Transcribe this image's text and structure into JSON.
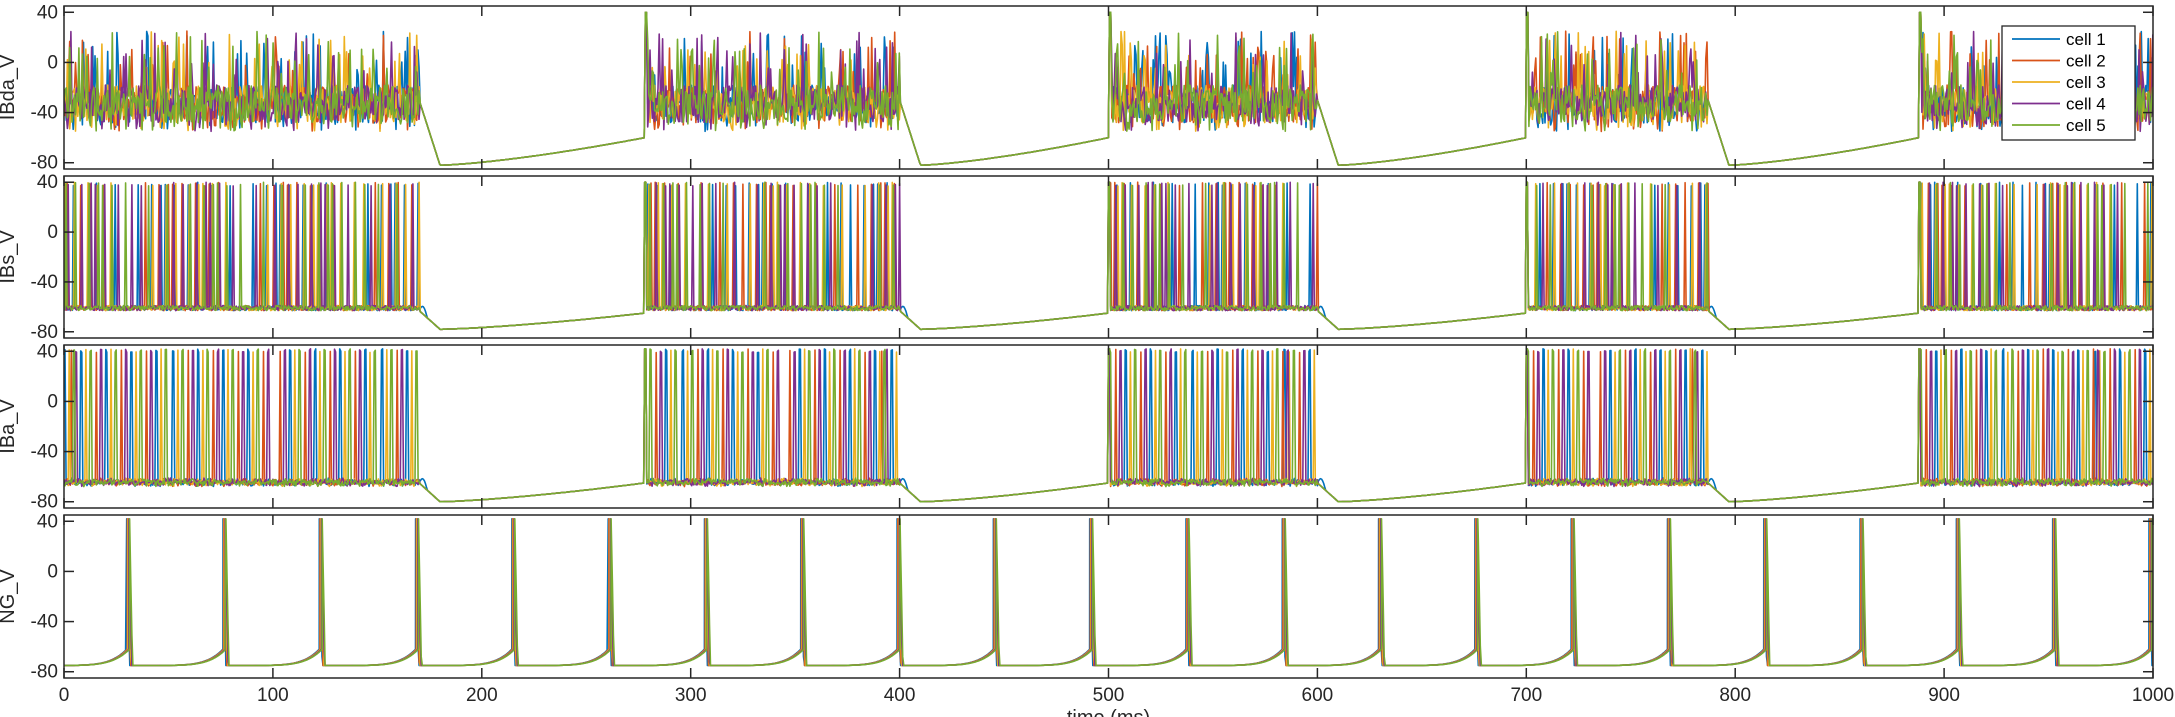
{
  "chart_data": {
    "type": "line",
    "x_range": [
      0,
      1000
    ],
    "x_ticks": [
      0,
      100,
      200,
      300,
      400,
      500,
      600,
      700,
      800,
      900,
      1000
    ],
    "xlabel": "time (ms)",
    "legend": {
      "placement": "top-right",
      "entries": [
        "cell 1",
        "cell 2",
        "cell 3",
        "cell 4",
        "cell 5"
      ],
      "colors": [
        "#0072BD",
        "#D95319",
        "#EDB120",
        "#7E2F8E",
        "#77AC30"
      ]
    },
    "panels": [
      {
        "ylabel": "IBda_V",
        "ylim": [
          -85,
          45
        ],
        "y_ticks": [
          40,
          0,
          -40,
          -80
        ],
        "kind": "dendritic-burst",
        "active_intervals": [
          [
            0,
            170
          ],
          [
            278,
            400
          ],
          [
            500,
            600
          ],
          [
            700,
            787
          ],
          [
            888,
            1000
          ]
        ],
        "active_band": [
          -48,
          -18
        ],
        "trough": -82,
        "recovery_peak": -63,
        "spike_peak": 40
      },
      {
        "ylabel": "IBs_V",
        "ylim": [
          -85,
          45
        ],
        "y_ticks": [
          40,
          0,
          -40,
          -80
        ],
        "kind": "dense-spiking",
        "active_intervals": [
          [
            0,
            170
          ],
          [
            278,
            400
          ],
          [
            500,
            600
          ],
          [
            700,
            787
          ],
          [
            888,
            1000
          ]
        ],
        "spike_peak": 40,
        "spike_base": -63,
        "trough": -78,
        "recovery_peak": -65
      },
      {
        "ylabel": "IBa_V",
        "ylim": [
          -85,
          45
        ],
        "y_ticks": [
          40,
          0,
          -40,
          -80
        ],
        "kind": "axonal-spiking",
        "active_intervals": [
          [
            0,
            170
          ],
          [
            278,
            400
          ],
          [
            500,
            600
          ],
          [
            700,
            787
          ],
          [
            888,
            1000
          ]
        ],
        "spike_peak": 42,
        "spike_base": -65,
        "trough": -80,
        "recovery_peak": -65
      },
      {
        "ylabel": "NG_V",
        "ylim": [
          -85,
          45
        ],
        "y_ticks": [
          40,
          0,
          -40,
          -80
        ],
        "kind": "periodic-spiking",
        "period_ms": 46.1,
        "first_spike_ms": 30,
        "spike_peak": 42,
        "reset": -75,
        "pre_spike": -62
      }
    ]
  }
}
